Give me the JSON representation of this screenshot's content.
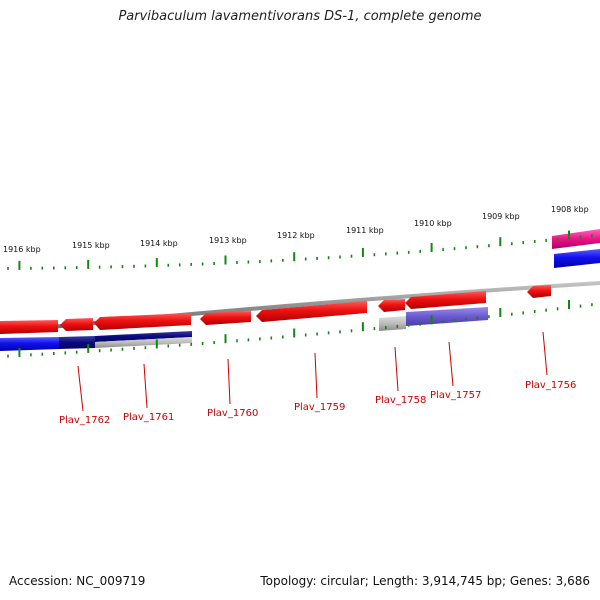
{
  "title": "Parvibaculum lavamentivorans DS-1, complete genome",
  "accession": "Accession: NC_009719",
  "summary": "Topology: circular; Length: 3,914,745 bp; Genes: 3,686",
  "ruler_labels": [
    "1916 kbp",
    "1915 kbp",
    "1914 kbp",
    "1913 kbp",
    "1912 kbp",
    "1911 kbp",
    "1910 kbp",
    "1909 kbp",
    "1908 kbp"
  ],
  "gene_labels": [
    "Plav_1762",
    "Plav_1761",
    "Plav_1760",
    "Plav_1759",
    "Plav_1758",
    "Plav_1757",
    "Plav_1756"
  ],
  "colors": {
    "gene_red": "#ee1111",
    "gene_blue": "#1111ee",
    "navy": "#0a0a80",
    "purple": "#6a5acd",
    "magenta": "#ee1188",
    "gray": "#9a9a9a",
    "tick_green": "#118811",
    "label_red": "#cc0000"
  }
}
